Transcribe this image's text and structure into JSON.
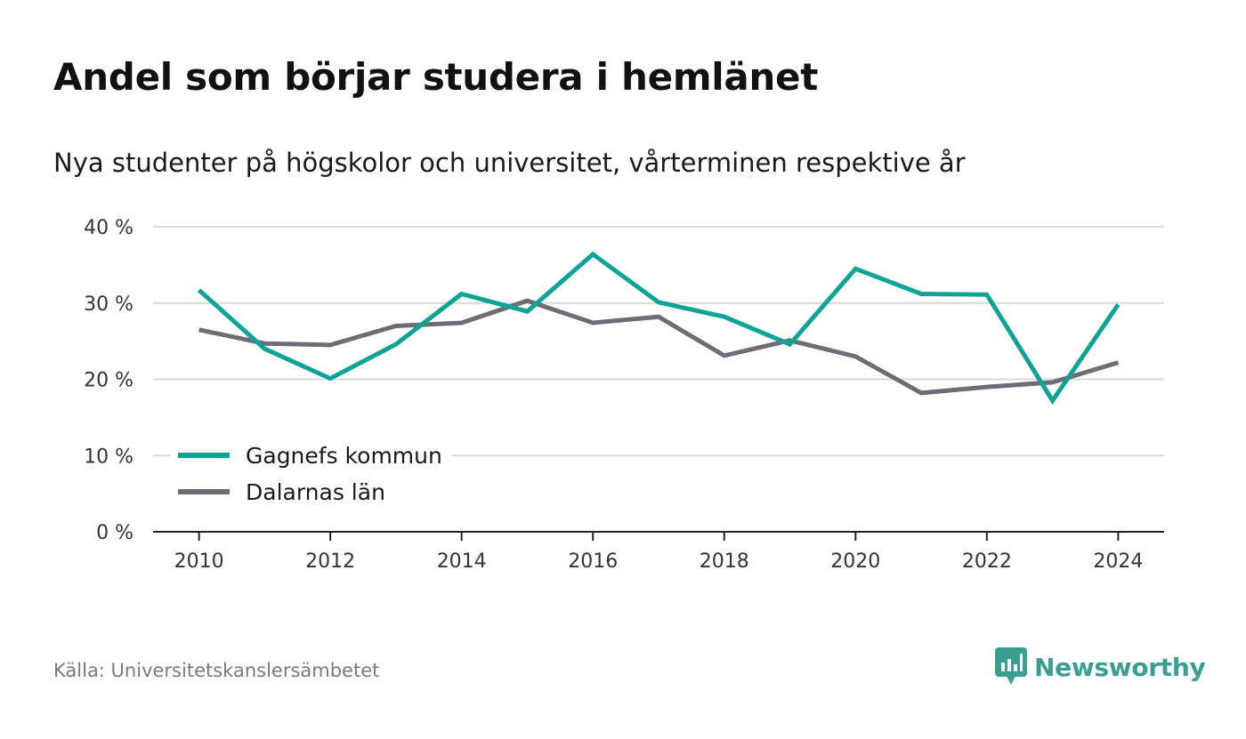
{
  "title": "Andel som börjar studera i hemlänet",
  "subtitle": "Nya studenter på högskolor och universitet, vårterminen respektive år",
  "source": "Källa: Universitetskanslersämbetet",
  "brand": "Newsworthy",
  "colors": {
    "teal": "#0da396",
    "gray": "#6e6c75",
    "grid": "#d9d9d9",
    "axis": "#222222",
    "brand": "#3a9e93"
  },
  "chart_data": {
    "type": "line",
    "x": [
      2010,
      2011,
      2012,
      2013,
      2014,
      2015,
      2016,
      2017,
      2018,
      2019,
      2020,
      2021,
      2022,
      2023,
      2024
    ],
    "xticks": [
      2010,
      2012,
      2014,
      2016,
      2018,
      2020,
      2022,
      2024
    ],
    "xlim": [
      2009.3,
      2024.7
    ],
    "ylim": [
      0,
      40
    ],
    "yticks": [
      0,
      10,
      20,
      30,
      40
    ],
    "ytick_labels": [
      "0 %",
      "10 %",
      "20 %",
      "30 %",
      "40 %"
    ],
    "grid": true,
    "legend_position": "bottom-left",
    "series": [
      {
        "name": "Gagnefs kommun",
        "color": "#0da396",
        "values": [
          31.7,
          24.0,
          20.1,
          24.6,
          31.2,
          28.9,
          36.4,
          30.1,
          28.2,
          24.6,
          34.5,
          31.2,
          31.1,
          17.2,
          29.8
        ]
      },
      {
        "name": "Dalarnas län",
        "color": "#6e6c75",
        "values": [
          26.5,
          24.7,
          24.5,
          27.0,
          27.4,
          30.3,
          27.4,
          28.2,
          23.1,
          25.1,
          23.0,
          18.2,
          19.0,
          19.6,
          22.2
        ]
      }
    ]
  }
}
